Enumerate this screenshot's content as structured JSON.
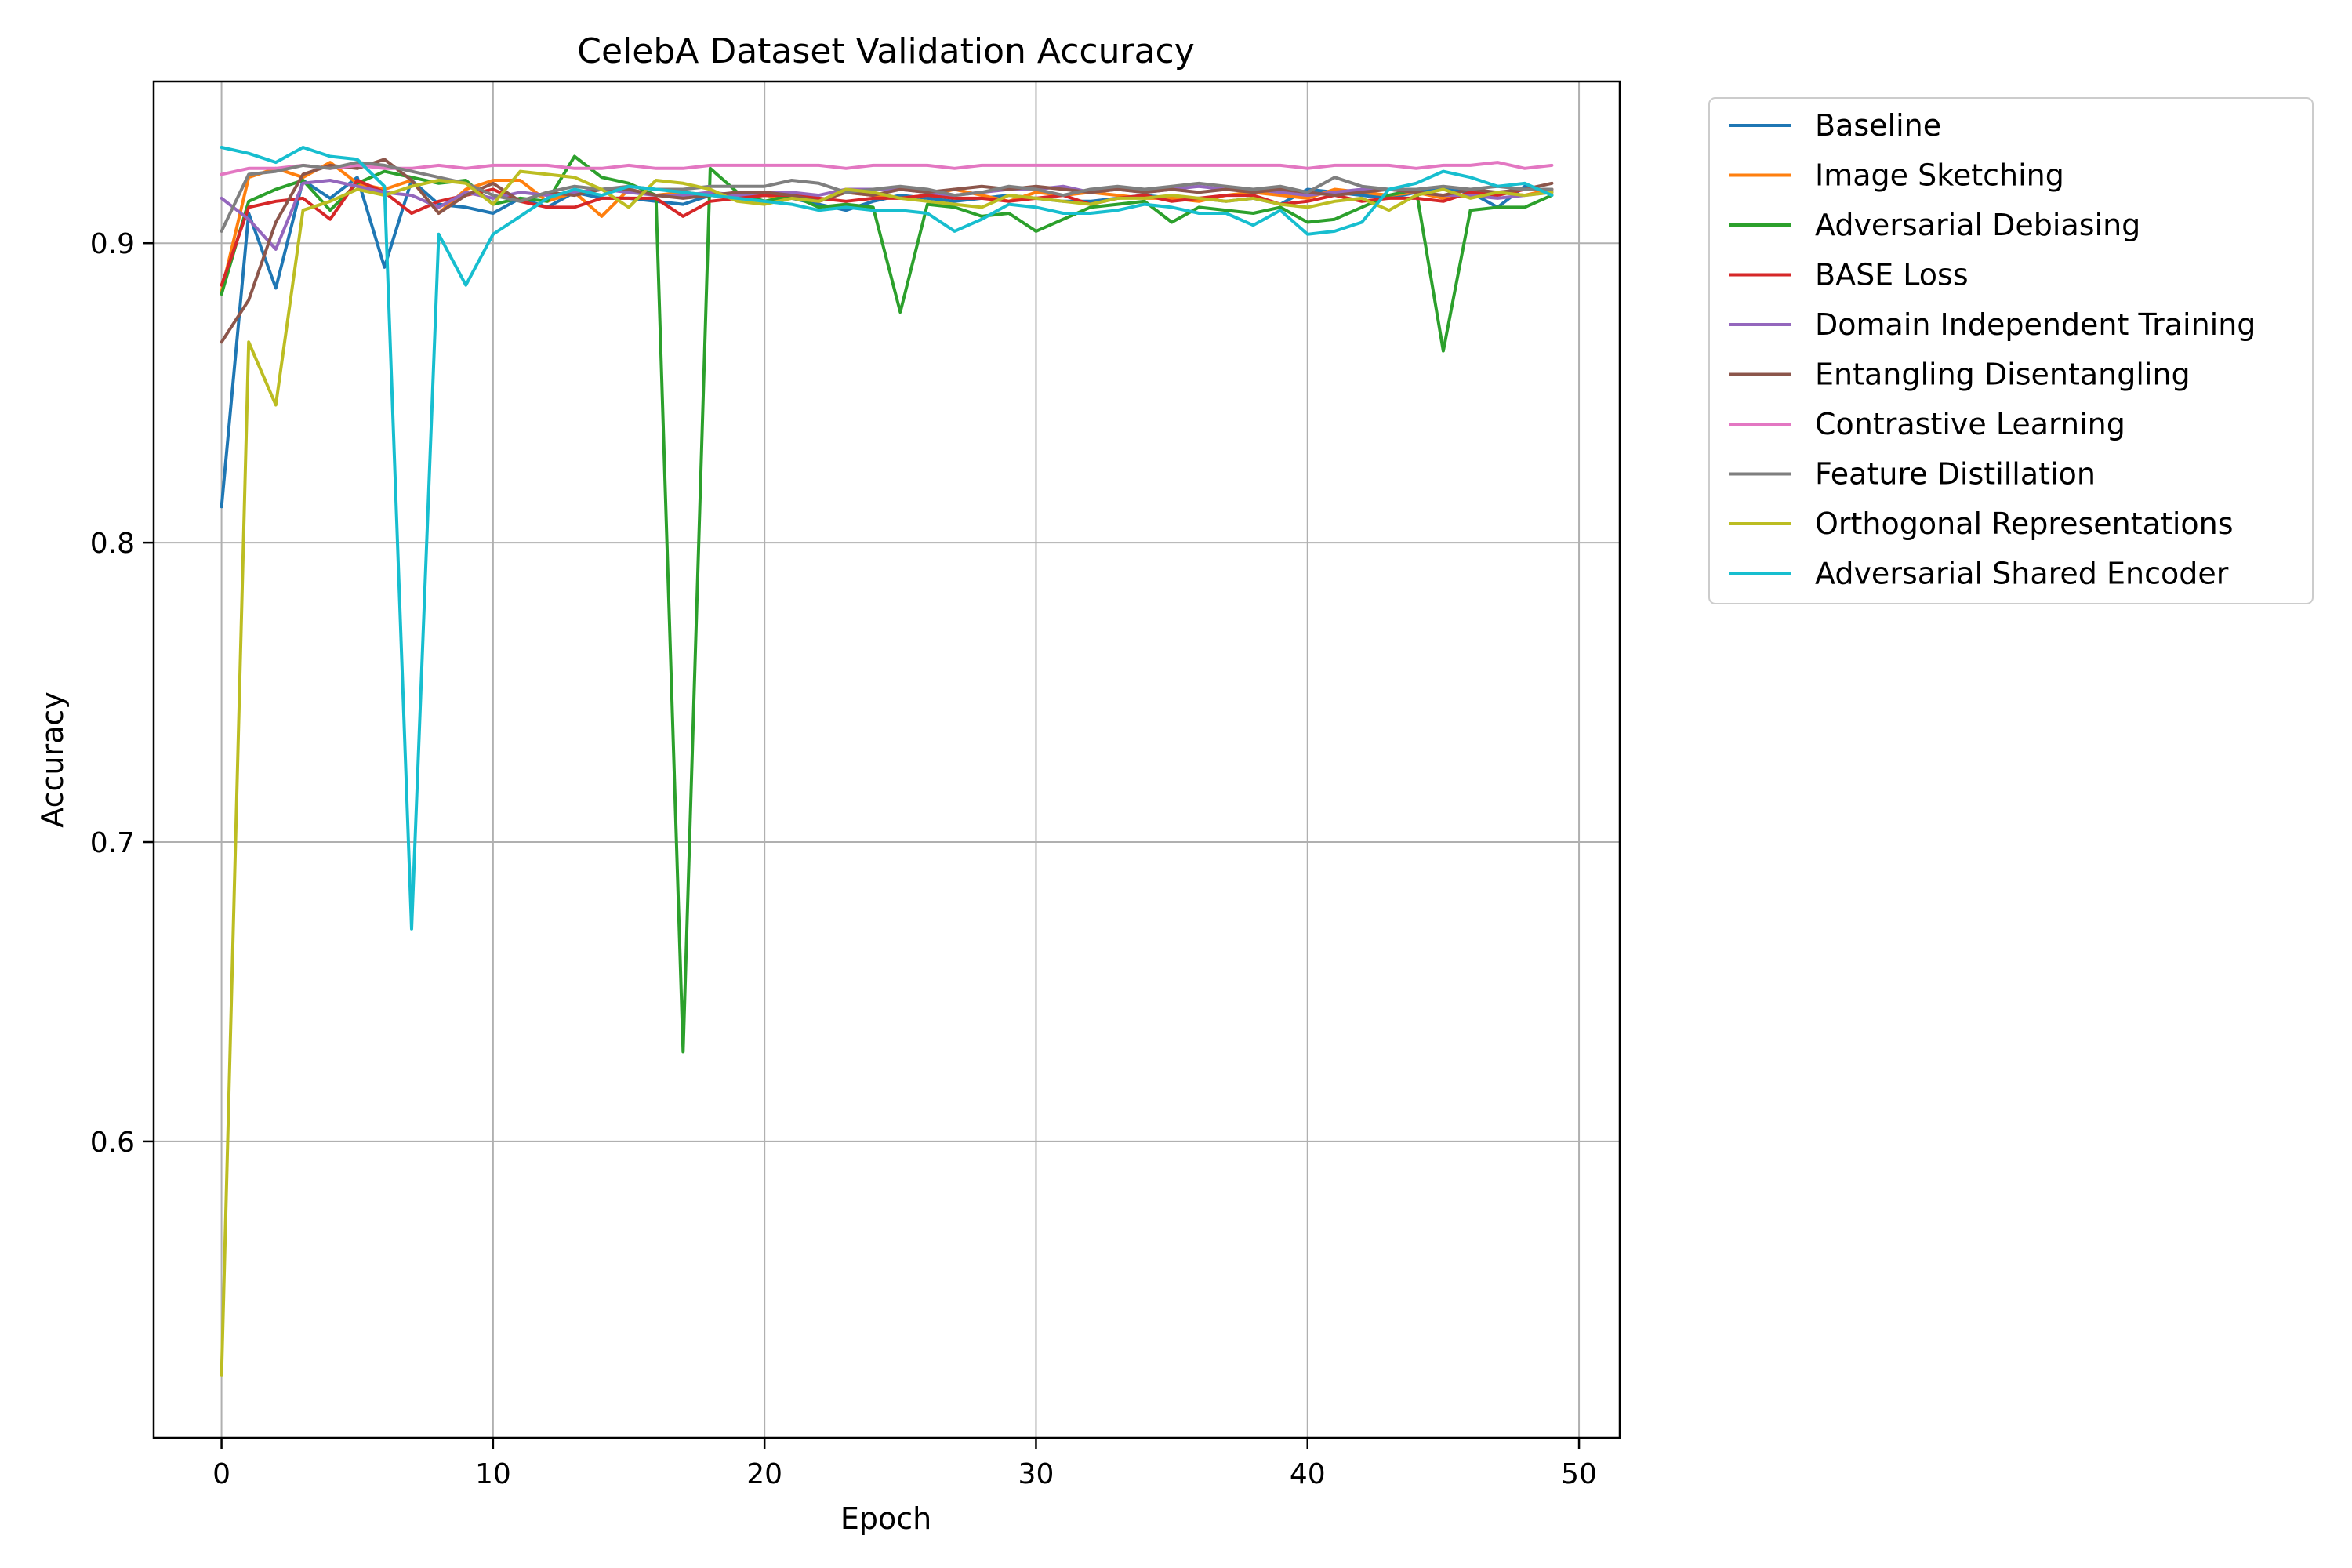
{
  "chart_data": {
    "type": "line",
    "title": "CelebA Dataset Validation Accuracy",
    "xlabel": "Epoch",
    "ylabel": "Accuracy",
    "xlim": [
      -2.5,
      51.5
    ],
    "ylim": [
      0.501,
      0.954
    ],
    "xticks": [
      0,
      10,
      20,
      30,
      40,
      50
    ],
    "yticks": [
      0.6,
      0.7,
      0.8,
      0.9
    ],
    "xtick_labels": [
      "0",
      "10",
      "20",
      "30",
      "40",
      "50"
    ],
    "ytick_labels": [
      "0.6",
      "0.7",
      "0.8",
      "0.9"
    ],
    "grid": true,
    "legend_position": "outside-upper-right",
    "x": [
      0,
      1,
      2,
      3,
      4,
      5,
      6,
      7,
      8,
      9,
      10,
      11,
      12,
      13,
      14,
      15,
      16,
      17,
      18,
      19,
      20,
      21,
      22,
      23,
      24,
      25,
      26,
      27,
      28,
      29,
      30,
      31,
      32,
      33,
      34,
      35,
      36,
      37,
      38,
      39,
      40,
      41,
      42,
      43,
      44,
      45,
      46,
      47,
      48,
      49
    ],
    "series": [
      {
        "name": "Baseline",
        "color": "#1f77b4",
        "values": [
          0.812,
          0.91,
          0.885,
          0.921,
          0.915,
          0.922,
          0.892,
          0.921,
          0.913,
          0.912,
          0.91,
          0.915,
          0.912,
          0.917,
          0.915,
          0.915,
          0.914,
          0.913,
          0.916,
          0.915,
          0.916,
          0.915,
          0.913,
          0.911,
          0.914,
          0.916,
          0.915,
          0.914,
          0.915,
          0.916,
          0.915,
          0.914,
          0.914,
          0.915,
          0.916,
          0.915,
          0.915,
          0.914,
          0.915,
          0.913,
          0.918,
          0.917,
          0.916,
          0.915,
          0.917,
          0.918,
          0.917,
          0.912,
          0.919,
          0.917
        ]
      },
      {
        "name": "Image Sketching",
        "color": "#ff7f0e",
        "values": [
          0.884,
          0.922,
          0.925,
          0.922,
          0.927,
          0.92,
          0.918,
          0.921,
          0.91,
          0.918,
          0.921,
          0.921,
          0.914,
          0.917,
          0.909,
          0.918,
          0.916,
          0.917,
          0.916,
          0.915,
          0.916,
          0.915,
          0.914,
          0.917,
          0.916,
          0.915,
          0.916,
          0.918,
          0.916,
          0.914,
          0.917,
          0.916,
          0.917,
          0.916,
          0.915,
          0.915,
          0.914,
          0.916,
          0.917,
          0.916,
          0.915,
          0.918,
          0.917,
          0.916,
          0.917,
          0.915,
          0.916,
          0.917,
          0.916,
          0.918
        ]
      },
      {
        "name": "Adversarial Debiasing",
        "color": "#2ca02c",
        "values": [
          0.883,
          0.914,
          0.918,
          0.921,
          0.911,
          0.92,
          0.924,
          0.922,
          0.92,
          0.921,
          0.913,
          0.915,
          0.914,
          0.929,
          0.922,
          0.92,
          0.916,
          0.63,
          0.925,
          0.917,
          0.914,
          0.916,
          0.912,
          0.913,
          0.912,
          0.877,
          0.913,
          0.912,
          0.909,
          0.91,
          0.904,
          0.908,
          0.912,
          0.913,
          0.914,
          0.907,
          0.912,
          0.911,
          0.91,
          0.912,
          0.907,
          0.908,
          0.912,
          0.916,
          0.918,
          0.864,
          0.911,
          0.912,
          0.912,
          0.916
        ]
      },
      {
        "name": "BASE Loss",
        "color": "#d62728",
        "values": [
          0.886,
          0.912,
          0.914,
          0.915,
          0.908,
          0.921,
          0.917,
          0.91,
          0.914,
          0.916,
          0.918,
          0.914,
          0.912,
          0.912,
          0.915,
          0.915,
          0.915,
          0.909,
          0.914,
          0.915,
          0.916,
          0.916,
          0.915,
          0.914,
          0.915,
          0.915,
          0.916,
          0.915,
          0.915,
          0.914,
          0.915,
          0.916,
          0.913,
          0.915,
          0.916,
          0.914,
          0.915,
          0.916,
          0.916,
          0.913,
          0.914,
          0.916,
          0.914,
          0.915,
          0.915,
          0.914,
          0.917,
          0.916,
          0.918,
          0.918
        ]
      },
      {
        "name": "Domain Independent Training",
        "color": "#9467bd",
        "values": [
          0.915,
          0.908,
          0.898,
          0.92,
          0.921,
          0.919,
          0.917,
          0.916,
          0.912,
          0.917,
          0.915,
          0.917,
          0.916,
          0.917,
          0.918,
          0.917,
          0.916,
          0.916,
          0.917,
          0.916,
          0.917,
          0.917,
          0.916,
          0.918,
          0.918,
          0.918,
          0.917,
          0.916,
          0.917,
          0.918,
          0.918,
          0.919,
          0.917,
          0.918,
          0.917,
          0.918,
          0.919,
          0.918,
          0.918,
          0.917,
          0.916,
          0.917,
          0.918,
          0.918,
          0.917,
          0.916,
          0.916,
          0.915,
          0.916,
          0.917
        ]
      },
      {
        "name": "Entangling Disentangling",
        "color": "#8c564b",
        "values": [
          0.867,
          0.881,
          0.907,
          0.923,
          0.926,
          0.925,
          0.928,
          0.921,
          0.91,
          0.916,
          0.92,
          0.914,
          0.917,
          0.916,
          0.918,
          0.918,
          0.916,
          0.915,
          0.916,
          0.917,
          0.917,
          0.916,
          0.914,
          0.917,
          0.916,
          0.918,
          0.917,
          0.918,
          0.919,
          0.918,
          0.919,
          0.918,
          0.917,
          0.918,
          0.917,
          0.918,
          0.917,
          0.918,
          0.917,
          0.918,
          0.917,
          0.916,
          0.917,
          0.918,
          0.917,
          0.916,
          0.918,
          0.917,
          0.918,
          0.92
        ]
      },
      {
        "name": "Contrastive Learning",
        "color": "#e377c2",
        "values": [
          0.923,
          0.925,
          0.925,
          0.926,
          0.925,
          0.926,
          0.925,
          0.925,
          0.926,
          0.925,
          0.926,
          0.926,
          0.926,
          0.925,
          0.925,
          0.926,
          0.925,
          0.925,
          0.926,
          0.926,
          0.926,
          0.926,
          0.926,
          0.925,
          0.926,
          0.926,
          0.926,
          0.925,
          0.926,
          0.926,
          0.926,
          0.926,
          0.926,
          0.926,
          0.926,
          0.926,
          0.926,
          0.926,
          0.926,
          0.926,
          0.925,
          0.926,
          0.926,
          0.926,
          0.925,
          0.926,
          0.926,
          0.927,
          0.925,
          0.926
        ]
      },
      {
        "name": "Feature Distillation",
        "color": "#7f7f7f",
        "values": [
          0.904,
          0.923,
          0.924,
          0.926,
          0.925,
          0.927,
          0.926,
          0.924,
          0.922,
          0.92,
          0.916,
          0.914,
          0.917,
          0.919,
          0.918,
          0.919,
          0.918,
          0.918,
          0.919,
          0.919,
          0.919,
          0.921,
          0.92,
          0.917,
          0.918,
          0.919,
          0.918,
          0.916,
          0.917,
          0.919,
          0.918,
          0.916,
          0.918,
          0.919,
          0.918,
          0.919,
          0.92,
          0.919,
          0.918,
          0.919,
          0.917,
          0.922,
          0.919,
          0.918,
          0.918,
          0.919,
          0.918,
          0.919,
          0.918,
          0.918
        ]
      },
      {
        "name": "Orthogonal Representations",
        "color": "#bcbd22",
        "values": [
          0.522,
          0.867,
          0.846,
          0.911,
          0.914,
          0.918,
          0.916,
          0.919,
          0.921,
          0.92,
          0.913,
          0.924,
          0.923,
          0.922,
          0.918,
          0.912,
          0.921,
          0.92,
          0.918,
          0.914,
          0.913,
          0.915,
          0.914,
          0.918,
          0.917,
          0.915,
          0.914,
          0.913,
          0.912,
          0.916,
          0.915,
          0.914,
          0.913,
          0.915,
          0.915,
          0.916,
          0.915,
          0.914,
          0.915,
          0.913,
          0.912,
          0.914,
          0.915,
          0.911,
          0.916,
          0.918,
          0.915,
          0.917,
          0.916,
          0.917
        ]
      },
      {
        "name": "Adversarial Shared Encoder",
        "color": "#17becf",
        "values": [
          0.932,
          0.93,
          0.927,
          0.932,
          0.929,
          0.928,
          0.919,
          0.671,
          0.903,
          0.886,
          0.903,
          0.909,
          0.915,
          0.918,
          0.916,
          0.919,
          0.918,
          0.917,
          0.916,
          0.915,
          0.914,
          0.913,
          0.911,
          0.912,
          0.911,
          0.911,
          0.91,
          0.904,
          0.908,
          0.913,
          0.912,
          0.91,
          0.91,
          0.911,
          0.913,
          0.912,
          0.91,
          0.91,
          0.906,
          0.911,
          0.903,
          0.904,
          0.907,
          0.918,
          0.92,
          0.924,
          0.922,
          0.919,
          0.92,
          0.916
        ]
      }
    ]
  }
}
